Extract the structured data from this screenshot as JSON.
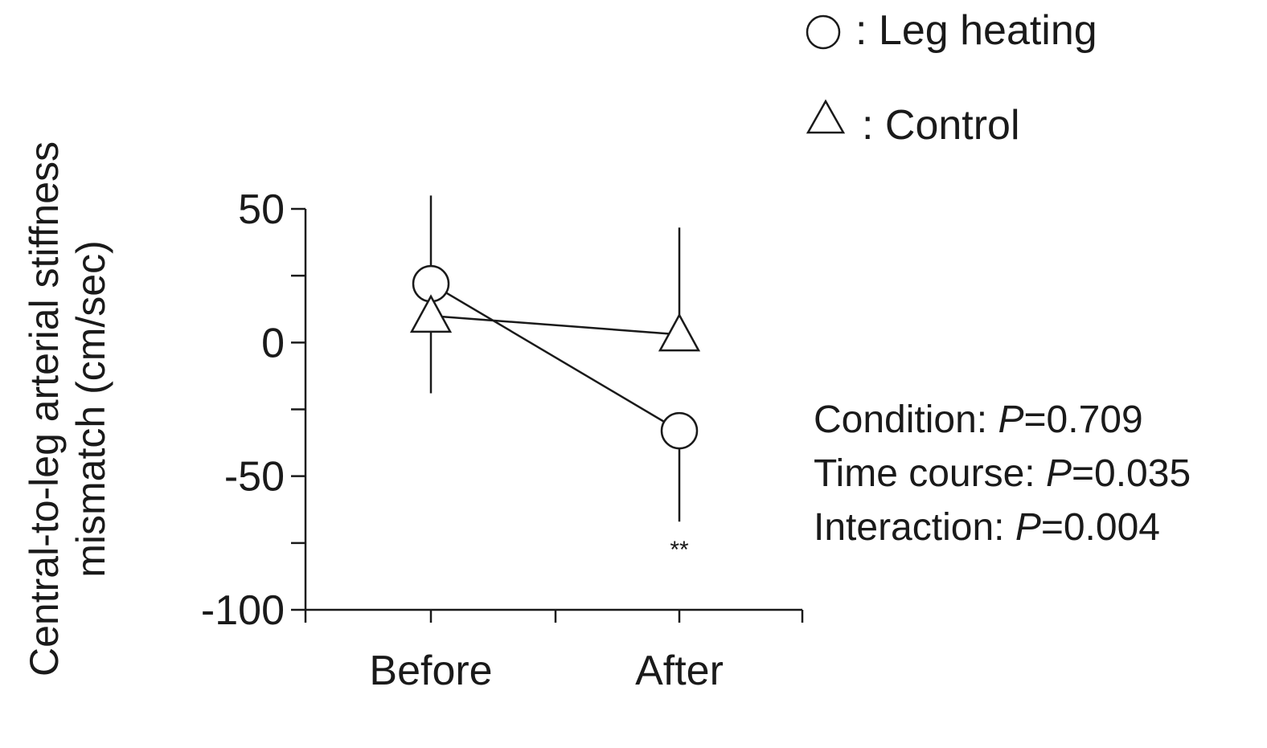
{
  "chart_data": {
    "type": "line",
    "categories": [
      "Before",
      "After"
    ],
    "ylabel_lines": [
      "Central-to-leg arterial stiffness",
      "mismatch (cm/sec)"
    ],
    "ylim": [
      -100,
      50
    ],
    "yticks": [
      50,
      25,
      0,
      -25,
      -50,
      -75,
      -100
    ],
    "ytick_labels": [
      "50",
      "0",
      "-50",
      "-100"
    ],
    "grid": false,
    "legend_position": "top-right",
    "series": [
      {
        "name": ": Leg heating",
        "marker": "circle",
        "values": [
          22,
          -33
        ],
        "error_upper": [
          55,
          null
        ],
        "error_lower": [
          null,
          -67
        ]
      },
      {
        "name": ": Control",
        "marker": "triangle",
        "values": [
          10,
          3
        ],
        "error_upper": [
          null,
          43
        ],
        "error_lower": [
          -19,
          null
        ]
      }
    ],
    "annotations": [
      {
        "text": "**",
        "category": "After",
        "value": -75
      }
    ]
  },
  "stats": [
    {
      "label": "Condition: ",
      "p_symbol": "P",
      "value": "=0.709"
    },
    {
      "label": "Time course: ",
      "p_symbol": "P",
      "value": "=0.035"
    },
    {
      "label": "Interaction: ",
      "p_symbol": "P",
      "value": "=0.004"
    }
  ]
}
